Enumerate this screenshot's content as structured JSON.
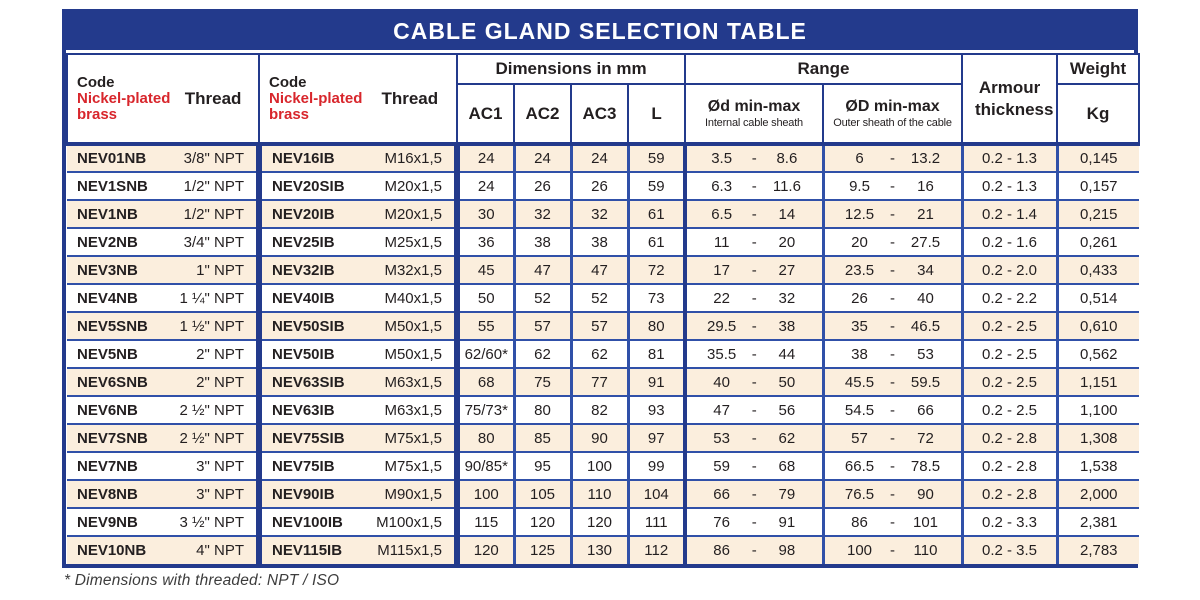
{
  "title": "CABLE GLAND SELECTION TABLE",
  "header": {
    "code_label": "Code",
    "code_sub": "Nickel-plated brass",
    "thread_label": "Thread",
    "dimensions_label": "Dimensions in mm",
    "dim_cols": [
      "AC1",
      "AC2",
      "AC3",
      "L"
    ],
    "range_label": "Range",
    "od_label": "Ød min-max",
    "od_sub": "Internal cable sheath",
    "OD_label": "ØD min-max",
    "OD_sub": "Outer sheath of the cable",
    "armour_label": "Armour thickness",
    "weight_label": "Weight",
    "weight_unit": "Kg"
  },
  "range_dash": "-",
  "rows": [
    {
      "code1": "NEV01NB",
      "thread1": "3/8\" NPT",
      "code2": "NEV16IB",
      "thread2": "M16x1,5",
      "ac1": "24",
      "ac2": "24",
      "ac3": "24",
      "l": "59",
      "od": [
        "3.5",
        "8.6"
      ],
      "OD": [
        "6",
        "13.2"
      ],
      "armour": "0.2 - 1.3",
      "weight": "0,145"
    },
    {
      "code1": "NEV1SNB",
      "thread1": "1/2\" NPT",
      "code2": "NEV20SIB",
      "thread2": "M20x1,5",
      "ac1": "24",
      "ac2": "26",
      "ac3": "26",
      "l": "59",
      "od": [
        "6.3",
        "11.6"
      ],
      "OD": [
        "9.5",
        "16"
      ],
      "armour": "0.2 - 1.3",
      "weight": "0,157"
    },
    {
      "code1": "NEV1NB",
      "thread1": "1/2\" NPT",
      "code2": "NEV20IB",
      "thread2": "M20x1,5",
      "ac1": "30",
      "ac2": "32",
      "ac3": "32",
      "l": "61",
      "od": [
        "6.5",
        "14"
      ],
      "OD": [
        "12.5",
        "21"
      ],
      "armour": "0.2 - 1.4",
      "weight": "0,215"
    },
    {
      "code1": "NEV2NB",
      "thread1": "3/4\" NPT",
      "code2": "NEV25IB",
      "thread2": "M25x1,5",
      "ac1": "36",
      "ac2": "38",
      "ac3": "38",
      "l": "61",
      "od": [
        "11",
        "20"
      ],
      "OD": [
        "20",
        "27.5"
      ],
      "armour": "0.2 - 1.6",
      "weight": "0,261"
    },
    {
      "code1": "NEV3NB",
      "thread1": "1\" NPT",
      "code2": "NEV32IB",
      "thread2": "M32x1,5",
      "ac1": "45",
      "ac2": "47",
      "ac3": "47",
      "l": "72",
      "od": [
        "17",
        "27"
      ],
      "OD": [
        "23.5",
        "34"
      ],
      "armour": "0.2 - 2.0",
      "weight": "0,433"
    },
    {
      "code1": "NEV4NB",
      "thread1": "1 ¼\" NPT",
      "code2": "NEV40IB",
      "thread2": "M40x1,5",
      "ac1": "50",
      "ac2": "52",
      "ac3": "52",
      "l": "73",
      "od": [
        "22",
        "32"
      ],
      "OD": [
        "26",
        "40"
      ],
      "armour": "0.2 - 2.2",
      "weight": "0,514"
    },
    {
      "code1": "NEV5SNB",
      "thread1": "1 ½\" NPT",
      "code2": "NEV50SIB",
      "thread2": "M50x1,5",
      "ac1": "55",
      "ac2": "57",
      "ac3": "57",
      "l": "80",
      "od": [
        "29.5",
        "38"
      ],
      "OD": [
        "35",
        "46.5"
      ],
      "armour": "0.2 - 2.5",
      "weight": "0,610"
    },
    {
      "code1": "NEV5NB",
      "thread1": "2\" NPT",
      "code2": "NEV50IB",
      "thread2": "M50x1,5",
      "ac1": "62/60*",
      "ac2": "62",
      "ac3": "62",
      "l": "81",
      "od": [
        "35.5",
        "44"
      ],
      "OD": [
        "38",
        "53"
      ],
      "armour": "0.2 - 2.5",
      "weight": "0,562"
    },
    {
      "code1": "NEV6SNB",
      "thread1": "2\" NPT",
      "code2": "NEV63SIB",
      "thread2": "M63x1,5",
      "ac1": "68",
      "ac2": "75",
      "ac3": "77",
      "l": "91",
      "od": [
        "40",
        "50"
      ],
      "OD": [
        "45.5",
        "59.5"
      ],
      "armour": "0.2 - 2.5",
      "weight": "1,151"
    },
    {
      "code1": "NEV6NB",
      "thread1": "2 ½\" NPT",
      "code2": "NEV63IB",
      "thread2": "M63x1,5",
      "ac1": "75/73*",
      "ac2": "80",
      "ac3": "82",
      "l": "93",
      "od": [
        "47",
        "56"
      ],
      "OD": [
        "54.5",
        "66"
      ],
      "armour": "0.2 - 2.5",
      "weight": "1,100"
    },
    {
      "code1": "NEV7SNB",
      "thread1": "2 ½\" NPT",
      "code2": "NEV75SIB",
      "thread2": "M75x1,5",
      "ac1": "80",
      "ac2": "85",
      "ac3": "90",
      "l": "97",
      "od": [
        "53",
        "62"
      ],
      "OD": [
        "57",
        "72"
      ],
      "armour": "0.2 - 2.8",
      "weight": "1,308"
    },
    {
      "code1": "NEV7NB",
      "thread1": "3\" NPT",
      "code2": "NEV75IB",
      "thread2": "M75x1,5",
      "ac1": "90/85*",
      "ac2": "95",
      "ac3": "100",
      "l": "99",
      "od": [
        "59",
        "68"
      ],
      "OD": [
        "66.5",
        "78.5"
      ],
      "armour": "0.2 - 2.8",
      "weight": "1,538"
    },
    {
      "code1": "NEV8NB",
      "thread1": "3\" NPT",
      "code2": "NEV90IB",
      "thread2": "M90x1,5",
      "ac1": "100",
      "ac2": "105",
      "ac3": "110",
      "l": "104",
      "od": [
        "66",
        "79"
      ],
      "OD": [
        "76.5",
        "90"
      ],
      "armour": "0.2 - 2.8",
      "weight": "2,000"
    },
    {
      "code1": "NEV9NB",
      "thread1": "3 ½\" NPT",
      "code2": "NEV100IB",
      "thread2": "M100x1,5",
      "ac1": "115",
      "ac2": "120",
      "ac3": "120",
      "l": "111",
      "od": [
        "76",
        "91"
      ],
      "OD": [
        "86",
        "101"
      ],
      "armour": "0.2 - 3.3",
      "weight": "2,381"
    },
    {
      "code1": "NEV10NB",
      "thread1": "4\" NPT",
      "code2": "NEV115IB",
      "thread2": "M115x1,5",
      "ac1": "120",
      "ac2": "125",
      "ac3": "130",
      "l": "112",
      "od": [
        "86",
        "98"
      ],
      "OD": [
        "100",
        "110"
      ],
      "armour": "0.2 - 3.5",
      "weight": "2,783"
    }
  ],
  "footnote": "* Dimensions with threaded: NPT / ISO",
  "colors": {
    "navy": "#233a8c",
    "line": "#3050a8",
    "cream": "#fbeedd",
    "red": "#d8262c",
    "text": "#231f20"
  }
}
